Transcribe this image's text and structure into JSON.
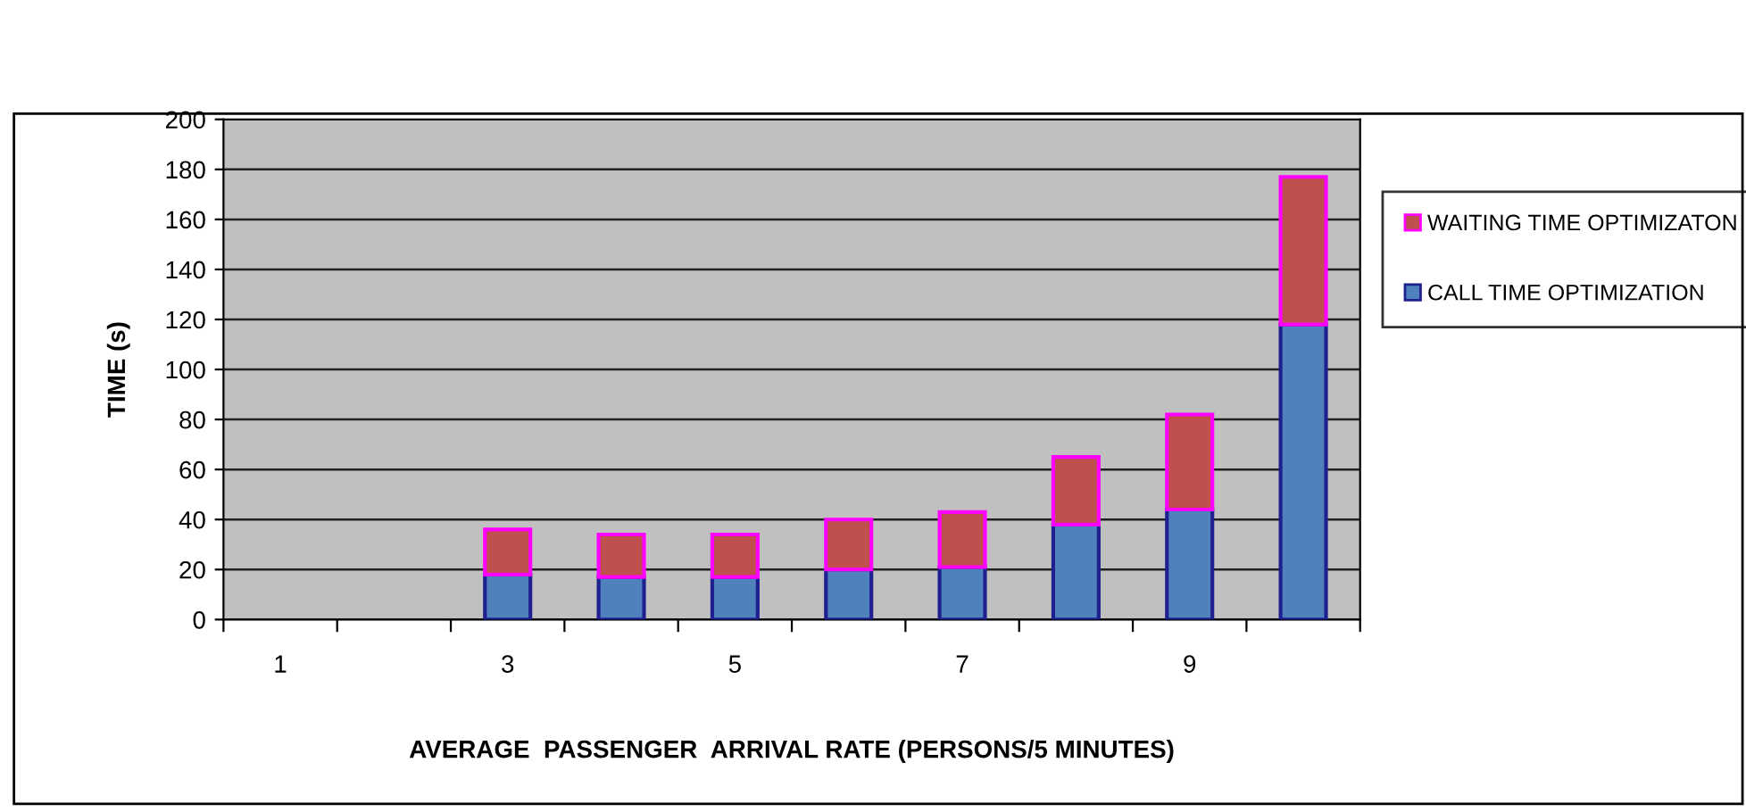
{
  "chart_data": {
    "type": "bar",
    "stacked": true,
    "categories": [
      "1",
      null,
      "3",
      null,
      "5",
      null,
      "7",
      null,
      "9",
      null
    ],
    "series": [
      {
        "name": "CALL TIME OPTIMIZATION",
        "color": "#4f81bd",
        "values": [
          null,
          null,
          18,
          17,
          17,
          20,
          21,
          38,
          44,
          118
        ]
      },
      {
        "name": "WAITING TIME OPTIMIZATON",
        "color": "#c0504d",
        "values": [
          null,
          null,
          18,
          17,
          17,
          20,
          22,
          27,
          38,
          59
        ]
      }
    ],
    "xlabel": "AVERAGE  PASSENGER  ARRIVAL RATE (PERSONS/5 MINUTES)",
    "ylabel": "TIME (s)",
    "ylim": [
      0,
      200
    ],
    "yticks": [
      0,
      20,
      40,
      60,
      80,
      100,
      120,
      140,
      160,
      180,
      200
    ],
    "grid": "y",
    "legend": "right"
  }
}
